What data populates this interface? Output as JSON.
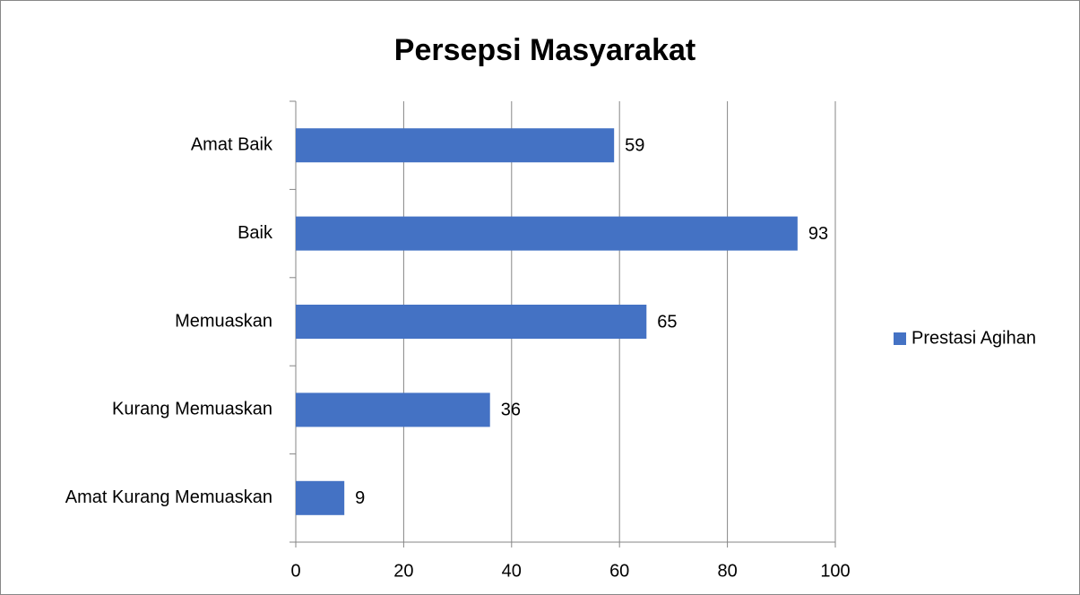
{
  "chart_data": {
    "type": "hbar",
    "title": "Persepsi Masyarakat",
    "categories": [
      "Amat Baik",
      "Baik",
      "Memuaskan",
      "Kurang Memuaskan",
      "Amat Kurang Memuaskan"
    ],
    "series": [
      {
        "name": "Prestasi Agihan",
        "color": "#4472c4",
        "values": [
          59,
          93,
          65,
          36,
          9
        ]
      }
    ],
    "xlim": [
      0,
      100
    ],
    "xticks": [
      0,
      20,
      40,
      60,
      80,
      100
    ],
    "grid": true,
    "legend": "right"
  }
}
